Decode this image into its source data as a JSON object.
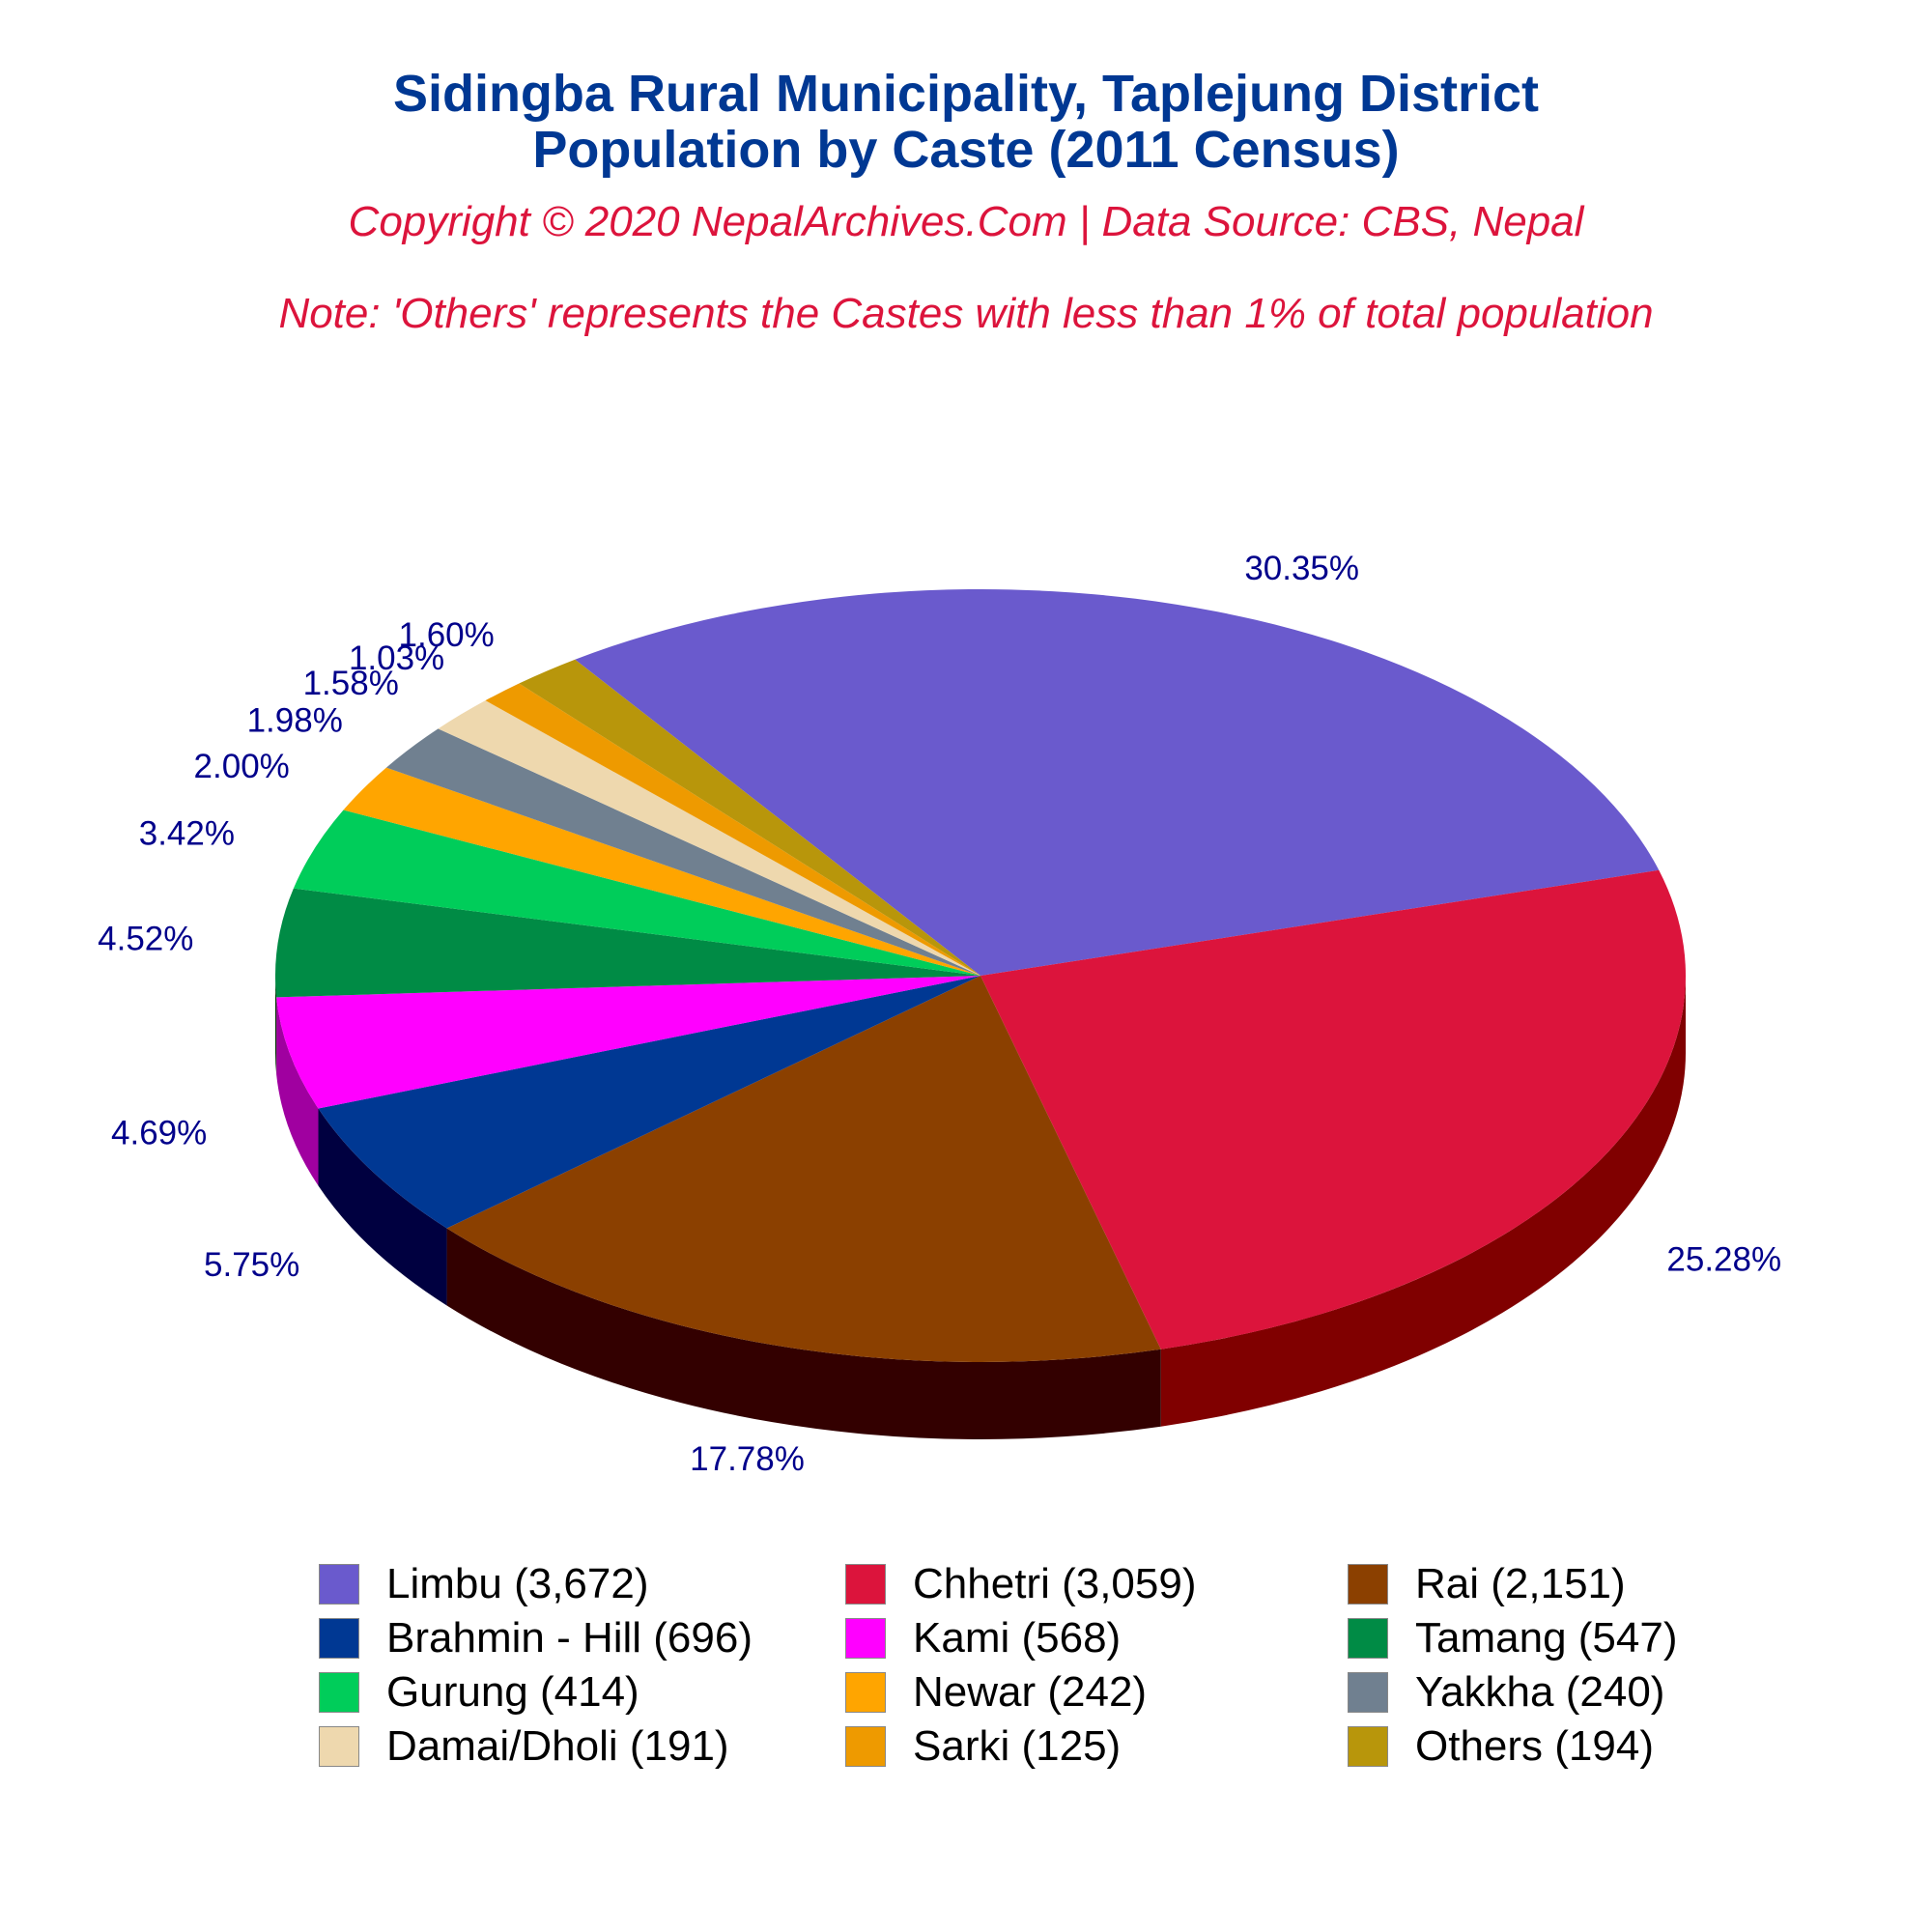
{
  "title_line1": "Sidingba Rural Municipality, Taplejung District",
  "title_line2": "Population by Caste (2011 Census)",
  "copyright": "Copyright © 2020 NepalArchives.Com | Data Source: CBS, Nepal",
  "note": "Note: 'Others' represents the Castes with less than 1% of total population",
  "chart_data": {
    "type": "pie",
    "style": "3d-tilted",
    "legend_position": "bottom",
    "slices": [
      {
        "label": "Limbu (3,672)",
        "value": 3672,
        "percent": "30.35%",
        "color": "#6a5acd",
        "side_color": "#3c3273"
      },
      {
        "label": "Chhetri (3,059)",
        "value": 3059,
        "percent": "25.28%",
        "color": "#dc143c",
        "side_color": "#800000"
      },
      {
        "label": "Rai (2,151)",
        "value": 2151,
        "percent": "17.78%",
        "color": "#8b4000",
        "side_color": "#330000"
      },
      {
        "label": "Brahmin - Hill (696)",
        "value": 696,
        "percent": "5.75%",
        "color": "#003893",
        "side_color": "#000040"
      },
      {
        "label": "Kami (568)",
        "value": 568,
        "percent": "4.69%",
        "color": "#ff00ff",
        "side_color": "#a000a0"
      },
      {
        "label": "Tamang (547)",
        "value": 547,
        "percent": "4.52%",
        "color": "#008b45",
        "side_color": "#003300"
      },
      {
        "label": "Gurung (414)",
        "value": 414,
        "percent": "3.42%",
        "color": "#00cd5a",
        "side_color": "#006b2e"
      },
      {
        "label": "Newar (242)",
        "value": 242,
        "percent": "2.00%",
        "color": "#ffa500",
        "side_color": "#8a5a00"
      },
      {
        "label": "Yakkha (240)",
        "value": 240,
        "percent": "1.98%",
        "color": "#708090",
        "side_color": "#3a4450"
      },
      {
        "label": "Damai/Dholi (191)",
        "value": 191,
        "percent": "1.58%",
        "color": "#eed8ae",
        "side_color": "#8c7f66"
      },
      {
        "label": "Sarki (125)",
        "value": 125,
        "percent": "1.03%",
        "color": "#ee9a00",
        "side_color": "#8a5a00"
      },
      {
        "label": "Others (194)",
        "value": 194,
        "percent": "1.60%",
        "color": "#b8960b",
        "side_color": "#6b5706"
      }
    ]
  }
}
